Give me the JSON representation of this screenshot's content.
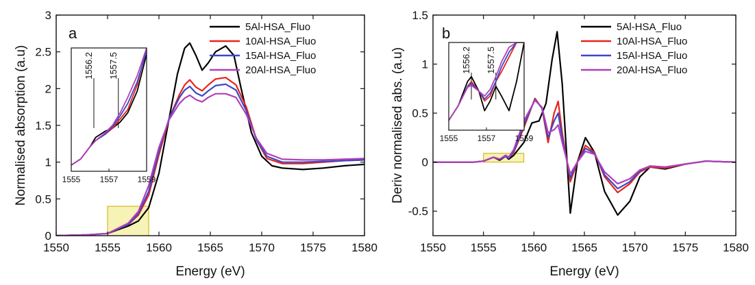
{
  "chart_data": [
    {
      "type": "line",
      "panel_letter": "a",
      "xlabel": "Energy (eV)",
      "ylabel": "Normalised absorption (a.u)",
      "xlim": [
        1550,
        1580
      ],
      "ylim": [
        0,
        3.0
      ],
      "xticks": [
        1550,
        1555,
        1560,
        1565,
        1570,
        1575,
        1580
      ],
      "yticks": [
        0.0,
        0.5,
        1.0,
        1.5,
        2.0,
        2.5,
        3.0
      ],
      "grid": false,
      "legend_position": "top-right",
      "highlight_region": {
        "x": [
          1555,
          1559
        ],
        "y": [
          0,
          0.4
        ],
        "color": "#f6f0a8"
      },
      "series": [
        {
          "name": "5Al-HSA_Fluo",
          "color": "#000000",
          "x": [
            1550,
            1553,
            1555,
            1556,
            1557,
            1558,
            1559,
            1560,
            1561,
            1561.8,
            1562.5,
            1563,
            1563.6,
            1564.2,
            1564.8,
            1565.5,
            1566.5,
            1567.3,
            1568,
            1569,
            1570,
            1571,
            1572,
            1574,
            1576,
            1578,
            1580
          ],
          "y": [
            0.0,
            0.01,
            0.03,
            0.08,
            0.13,
            0.2,
            0.38,
            0.85,
            1.6,
            2.2,
            2.55,
            2.62,
            2.45,
            2.25,
            2.35,
            2.5,
            2.58,
            2.45,
            2.0,
            1.4,
            1.08,
            0.95,
            0.92,
            0.9,
            0.92,
            0.95,
            0.97
          ]
        },
        {
          "name": "10Al-HSA_Fluo",
          "color": "#e8241c",
          "x": [
            1550,
            1553,
            1555,
            1556,
            1557,
            1558,
            1559,
            1560,
            1561,
            1562,
            1562.5,
            1563,
            1563.6,
            1564.2,
            1564.8,
            1565.5,
            1566.5,
            1567.5,
            1568.5,
            1569.5,
            1570.5,
            1572,
            1574,
            1576,
            1578,
            1580
          ],
          "y": [
            0.0,
            0.01,
            0.03,
            0.09,
            0.15,
            0.28,
            0.55,
            1.1,
            1.6,
            1.92,
            2.05,
            2.12,
            2.02,
            1.97,
            2.05,
            2.13,
            2.15,
            2.05,
            1.75,
            1.3,
            1.05,
            0.98,
            0.98,
            1.0,
            1.02,
            1.03
          ]
        },
        {
          "name": "15Al-HSA_Fluo",
          "color": "#3b48c4",
          "x": [
            1550,
            1553,
            1555,
            1556,
            1557,
            1558,
            1559,
            1560,
            1561,
            1562,
            1562.5,
            1563,
            1563.6,
            1564.2,
            1564.8,
            1565.5,
            1566.5,
            1567.5,
            1568.5,
            1569.5,
            1570.5,
            1572,
            1574,
            1576,
            1578,
            1580
          ],
          "y": [
            0.0,
            0.01,
            0.03,
            0.09,
            0.15,
            0.3,
            0.6,
            1.15,
            1.6,
            1.88,
            1.98,
            2.03,
            1.94,
            1.9,
            1.97,
            2.04,
            2.06,
            1.98,
            1.7,
            1.3,
            1.08,
            1.0,
            1.0,
            1.01,
            1.02,
            1.03
          ]
        },
        {
          "name": "20Al-HSA_Fluo",
          "color": "#b040b8",
          "x": [
            1550,
            1553,
            1555,
            1556,
            1557,
            1558,
            1559,
            1560,
            1561,
            1562,
            1562.5,
            1563,
            1563.6,
            1564.2,
            1564.8,
            1565.5,
            1566.5,
            1567.5,
            1568.5,
            1569.5,
            1570.5,
            1572,
            1574,
            1576,
            1578,
            1580
          ],
          "y": [
            0.0,
            0.01,
            0.03,
            0.1,
            0.17,
            0.33,
            0.68,
            1.2,
            1.58,
            1.8,
            1.87,
            1.91,
            1.85,
            1.82,
            1.88,
            1.93,
            1.93,
            1.88,
            1.65,
            1.32,
            1.12,
            1.04,
            1.03,
            1.03,
            1.04,
            1.05
          ]
        }
      ],
      "inset": {
        "xlim": [
          1555,
          1559
        ],
        "ylim": [
          0.0,
          0.4
        ],
        "xticks": [
          1555,
          1557,
          1559
        ],
        "annotations": [
          {
            "x": 1556.2,
            "label": "1556.2"
          },
          {
            "x": 1557.5,
            "label": "1557.5"
          }
        ],
        "series": [
          {
            "name": "5Al-HSA_Fluo",
            "color": "#000000",
            "x": [
              1555,
              1555.5,
              1556,
              1556.3,
              1556.8,
              1557.2,
              1557.6,
              1558,
              1558.5,
              1559
            ],
            "y": [
              0.02,
              0.04,
              0.08,
              0.11,
              0.13,
              0.14,
              0.16,
              0.19,
              0.26,
              0.38
            ]
          },
          {
            "name": "10Al-HSA_Fluo",
            "color": "#e8241c",
            "x": [
              1555,
              1555.5,
              1556,
              1556.3,
              1556.8,
              1557.2,
              1557.6,
              1558,
              1558.5,
              1559
            ],
            "y": [
              0.02,
              0.04,
              0.08,
              0.1,
              0.12,
              0.14,
              0.17,
              0.2,
              0.28,
              0.4
            ]
          },
          {
            "name": "15Al-HSA_Fluo",
            "color": "#3b48c4",
            "x": [
              1555,
              1555.5,
              1556,
              1556.3,
              1556.8,
              1557.2,
              1557.6,
              1558,
              1558.5,
              1559
            ],
            "y": [
              0.02,
              0.04,
              0.08,
              0.1,
              0.12,
              0.145,
              0.18,
              0.22,
              0.29,
              0.39
            ]
          },
          {
            "name": "20Al-HSA_Fluo",
            "color": "#b040b8",
            "x": [
              1555,
              1555.5,
              1556,
              1556.3,
              1556.8,
              1557.2,
              1557.6,
              1558,
              1558.5,
              1559
            ],
            "y": [
              0.02,
              0.04,
              0.08,
              0.1,
              0.125,
              0.15,
              0.19,
              0.24,
              0.31,
              0.4
            ]
          }
        ]
      }
    },
    {
      "type": "line",
      "panel_letter": "b",
      "xlabel": "Energy (eV)",
      "ylabel": "Deriv normalised abs. (a.u)",
      "xlim": [
        1550,
        1580
      ],
      "ylim": [
        -0.75,
        1.5
      ],
      "xticks": [
        1550,
        1555,
        1560,
        1565,
        1570,
        1575,
        1580
      ],
      "yticks": [
        -0.5,
        0.0,
        0.5,
        1.0,
        1.5
      ],
      "grid": false,
      "legend_position": "top-right",
      "highlight_region": {
        "x": [
          1555,
          1559
        ],
        "y": [
          0,
          0.09
        ],
        "color": "#f6f0a8"
      },
      "series": [
        {
          "name": "5Al-HSA_Fluo",
          "color": "#000000",
          "x": [
            1550,
            1554,
            1555,
            1556,
            1556.6,
            1557.2,
            1557.5,
            1558,
            1559,
            1559.8,
            1560.5,
            1561.2,
            1561.8,
            1562.3,
            1562.8,
            1563.6,
            1564.3,
            1565.1,
            1566,
            1567,
            1568.3,
            1569.5,
            1570.5,
            1571.5,
            1573,
            1575,
            1577,
            1580
          ],
          "y": [
            0,
            0,
            0.01,
            0.05,
            0.02,
            0.06,
            0.03,
            0.07,
            0.2,
            0.4,
            0.42,
            0.6,
            1.05,
            1.33,
            0.8,
            -0.52,
            0.0,
            0.25,
            0.1,
            -0.3,
            -0.54,
            -0.4,
            -0.15,
            -0.05,
            -0.07,
            -0.02,
            0.01,
            0
          ]
        },
        {
          "name": "10Al-HSA_Fluo",
          "color": "#e8241c",
          "x": [
            1550,
            1554,
            1555,
            1556,
            1556.6,
            1557.2,
            1557.5,
            1558,
            1559,
            1560.1,
            1560.8,
            1561.4,
            1562,
            1562.4,
            1562.8,
            1563.6,
            1564.3,
            1565.1,
            1566,
            1567,
            1568.3,
            1569.5,
            1570.5,
            1571.5,
            1573,
            1575,
            1577,
            1580
          ],
          "y": [
            0,
            0,
            0.01,
            0.05,
            0.03,
            0.06,
            0.04,
            0.1,
            0.35,
            0.65,
            0.55,
            0.2,
            0.5,
            0.62,
            0.3,
            -0.2,
            0.0,
            0.17,
            0.1,
            -0.15,
            -0.31,
            -0.22,
            -0.1,
            -0.05,
            -0.06,
            -0.02,
            0.01,
            0
          ]
        },
        {
          "name": "15Al-HSA_Fluo",
          "color": "#3b48c4",
          "x": [
            1550,
            1554,
            1555,
            1556,
            1556.6,
            1557.2,
            1557.5,
            1558,
            1559,
            1560.1,
            1560.8,
            1561.4,
            1562,
            1562.4,
            1562.8,
            1563.6,
            1564.3,
            1565.1,
            1566,
            1567,
            1568.3,
            1569.5,
            1570.5,
            1571.5,
            1573,
            1575,
            1577,
            1580
          ],
          "y": [
            0,
            0,
            0.01,
            0.05,
            0.03,
            0.06,
            0.04,
            0.11,
            0.38,
            0.64,
            0.55,
            0.25,
            0.42,
            0.5,
            0.25,
            -0.16,
            0.0,
            0.14,
            0.09,
            -0.13,
            -0.27,
            -0.2,
            -0.09,
            -0.04,
            -0.05,
            -0.02,
            0.01,
            0
          ]
        },
        {
          "name": "20Al-HSA_Fluo",
          "color": "#b040b8",
          "x": [
            1550,
            1554,
            1555,
            1556,
            1556.6,
            1557.2,
            1557.5,
            1558,
            1559,
            1560.1,
            1560.8,
            1561.4,
            1562,
            1562.4,
            1562.8,
            1563.6,
            1564.3,
            1565.1,
            1566,
            1567,
            1568.3,
            1569.5,
            1570.5,
            1571.5,
            1573,
            1575,
            1577,
            1580
          ],
          "y": [
            0,
            0,
            0.01,
            0.05,
            0.03,
            0.07,
            0.05,
            0.13,
            0.42,
            0.63,
            0.56,
            0.3,
            0.33,
            0.38,
            0.2,
            -0.12,
            0.0,
            0.11,
            0.08,
            -0.1,
            -0.22,
            -0.17,
            -0.08,
            -0.04,
            -0.05,
            -0.02,
            0.01,
            0
          ]
        }
      ],
      "inset": {
        "xlim": [
          1555,
          1559
        ],
        "ylim": [
          0.0,
          0.09
        ],
        "xticks": [
          1555,
          1557,
          1559
        ],
        "annotations": [
          {
            "x": 1556.2,
            "label": "1556.2"
          },
          {
            "x": 1557.5,
            "label": "1557.5"
          }
        ],
        "series": [
          {
            "name": "5Al-HSA_Fluo",
            "color": "#000000",
            "x": [
              1555,
              1555.5,
              1556,
              1556.2,
              1556.6,
              1556.9,
              1557.2,
              1557.5,
              1557.8,
              1558.2,
              1558.6,
              1559
            ],
            "y": [
              0.01,
              0.025,
              0.05,
              0.055,
              0.04,
              0.02,
              0.03,
              0.045,
              0.035,
              0.02,
              0.05,
              0.09
            ]
          },
          {
            "name": "10Al-HSA_Fluo",
            "color": "#e8241c",
            "x": [
              1555,
              1555.5,
              1556,
              1556.2,
              1556.6,
              1556.9,
              1557.2,
              1557.5,
              1557.8,
              1558.2,
              1558.6,
              1559
            ],
            "y": [
              0.01,
              0.025,
              0.045,
              0.05,
              0.04,
              0.03,
              0.035,
              0.05,
              0.06,
              0.075,
              0.09,
              0.09
            ]
          },
          {
            "name": "15Al-HSA_Fluo",
            "color": "#3b48c4",
            "x": [
              1555,
              1555.5,
              1556,
              1556.2,
              1556.6,
              1556.9,
              1557.2,
              1557.5,
              1557.8,
              1558.2,
              1558.6,
              1559
            ],
            "y": [
              0.01,
              0.025,
              0.045,
              0.048,
              0.04,
              0.032,
              0.038,
              0.05,
              0.065,
              0.08,
              0.09,
              0.09
            ]
          },
          {
            "name": "20Al-HSA_Fluo",
            "color": "#b040b8",
            "x": [
              1555,
              1555.5,
              1556,
              1556.2,
              1556.6,
              1556.9,
              1557.2,
              1557.5,
              1557.8,
              1558.2,
              1558.6,
              1559
            ],
            "y": [
              0.01,
              0.025,
              0.044,
              0.046,
              0.04,
              0.035,
              0.042,
              0.055,
              0.07,
              0.085,
              0.09,
              0.09
            ]
          }
        ]
      }
    }
  ]
}
